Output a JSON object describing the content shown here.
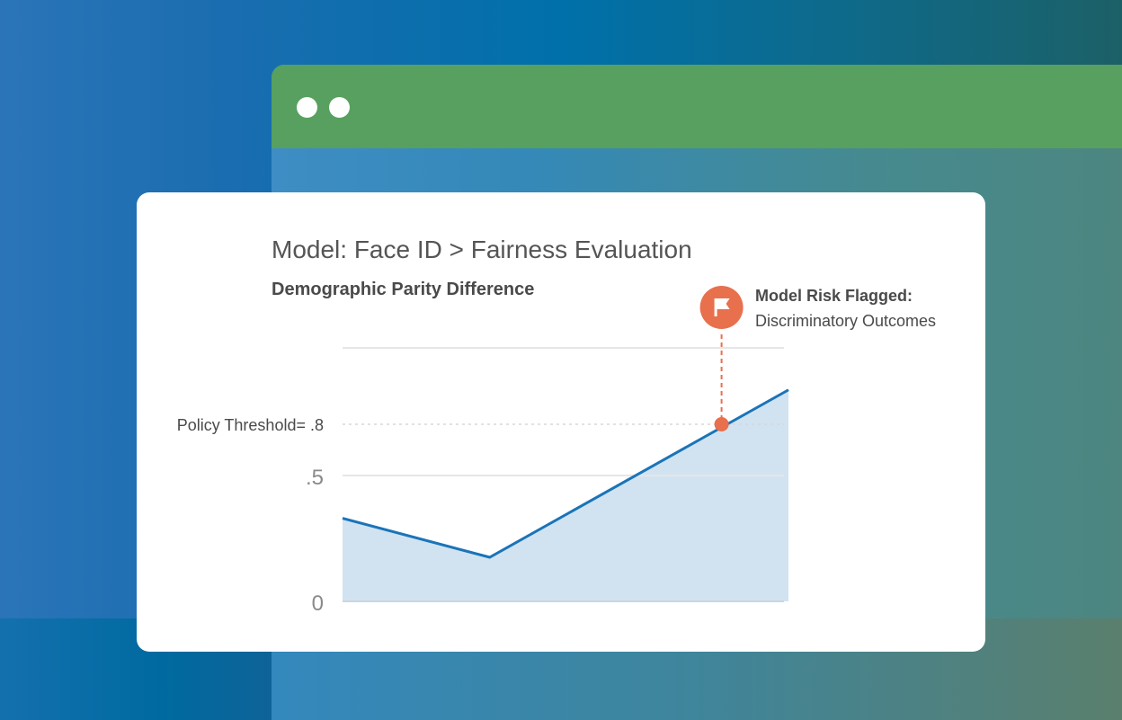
{
  "window": {
    "dots": 2,
    "titlebar_color": "#58a05f"
  },
  "card": {
    "title": "Model: Face ID > Fairness Evaluation",
    "subtitle": "Demographic Parity Difference"
  },
  "flag": {
    "title": "Model Risk Flagged:",
    "subtitle": "Discriminatory Outcomes",
    "icon": "flag-icon",
    "color": "#e8704d"
  },
  "chart_data": {
    "type": "area",
    "title": "Demographic Parity Difference",
    "y_ticks": [
      {
        "value": 0,
        "label": "0"
      },
      {
        "value": 0.5,
        "label": ".5"
      },
      {
        "value": 1.0,
        "label": ""
      }
    ],
    "threshold": {
      "value": 0.8,
      "label": "Policy Threshold= .8"
    },
    "series": [
      {
        "values": [
          0.33,
          0.175,
          0.89
        ],
        "color": "#1a74b8",
        "fill": "#d1e3f1"
      }
    ],
    "x_positions": [
      0,
      0.33,
      1
    ],
    "flag_point": {
      "x": 0.85,
      "y": 0.8
    },
    "ylim": [
      0,
      1
    ],
    "grid": true
  }
}
